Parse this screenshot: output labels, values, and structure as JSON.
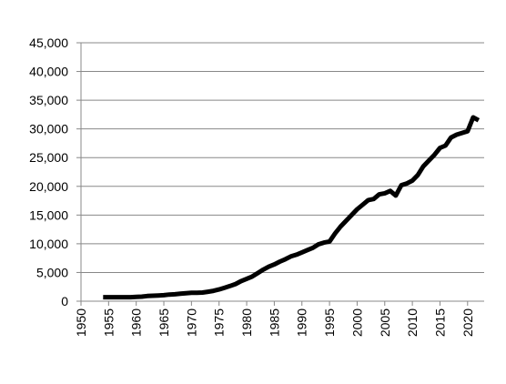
{
  "chart_data": {
    "type": "line",
    "color": "#000000",
    "grid": true,
    "x": [
      1954,
      1955,
      1956,
      1957,
      1958,
      1959,
      1960,
      1961,
      1962,
      1963,
      1964,
      1965,
      1966,
      1967,
      1968,
      1969,
      1970,
      1971,
      1972,
      1973,
      1974,
      1975,
      1976,
      1977,
      1978,
      1979,
      1980,
      1981,
      1982,
      1983,
      1984,
      1985,
      1986,
      1987,
      1988,
      1989,
      1990,
      1991,
      1992,
      1993,
      1994,
      1995,
      1996,
      1997,
      1998,
      1999,
      2000,
      2001,
      2002,
      2003,
      2004,
      2005,
      2006,
      2007,
      2008,
      2009,
      2010,
      2011,
      2012,
      2013,
      2014,
      2015,
      2016,
      2017,
      2018,
      2019,
      2020,
      2021,
      2022
    ],
    "values": [
      700,
      700,
      700,
      700,
      700,
      700,
      750,
      800,
      900,
      950,
      1000,
      1050,
      1150,
      1200,
      1300,
      1400,
      1450,
      1450,
      1500,
      1650,
      1800,
      2050,
      2350,
      2650,
      3000,
      3500,
      3900,
      4300,
      4900,
      5500,
      6000,
      6400,
      6900,
      7300,
      7800,
      8100,
      8500,
      8900,
      9300,
      9900,
      10200,
      10400,
      11800,
      13000,
      14000,
      15000,
      16000,
      16800,
      17600,
      17800,
      18600,
      18800,
      19200,
      18400,
      20200,
      20500,
      21000,
      22000,
      23500,
      24500,
      25500,
      26700,
      27100,
      28500,
      29000,
      29300,
      29600,
      32000,
      31500
    ],
    "xlim": [
      1950,
      2023
    ],
    "xticks": [
      1950,
      1955,
      1960,
      1965,
      1970,
      1975,
      1980,
      1985,
      1990,
      1995,
      2000,
      2005,
      2010,
      2015,
      2020
    ],
    "ylim": [
      0,
      45000
    ],
    "yticks": [
      0,
      {
        "value": 5000,
        "label": "5,000"
      },
      {
        "value": 10000,
        "label": "10,000"
      },
      {
        "value": 15000,
        "label": "15,000"
      },
      {
        "value": 20000,
        "label": "20,000"
      },
      {
        "value": 25000,
        "label": "25,000"
      },
      {
        "value": 30000,
        "label": "30,000"
      },
      {
        "value": 35000,
        "label": "35,000"
      },
      {
        "value": 40000,
        "label": "40,000"
      },
      {
        "value": 45000,
        "label": "45,000"
      }
    ]
  }
}
